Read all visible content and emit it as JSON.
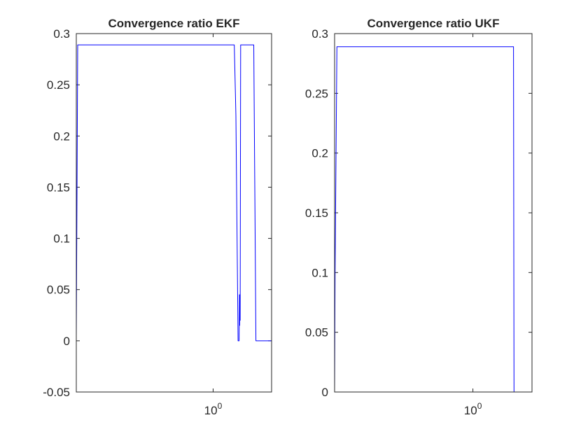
{
  "colors": {
    "line": "#0000ff",
    "axes": "#262626",
    "background": "#ffffff"
  },
  "chart_data": [
    {
      "type": "line",
      "title": "Convergence ratio EKF",
      "xlabel": "",
      "ylabel": "",
      "xscale": "log",
      "xlim": [
        0.158,
        2.2
      ],
      "ylim": [
        -0.05,
        0.3
      ],
      "grid": false,
      "box": true,
      "xticks": [
        {
          "value": 1,
          "base": "10",
          "exp": "0"
        }
      ],
      "yticks": [
        {
          "value": -0.05,
          "label": "-0.05"
        },
        {
          "value": 0,
          "label": "0"
        },
        {
          "value": 0.05,
          "label": "0.05"
        },
        {
          "value": 0.1,
          "label": "0.1"
        },
        {
          "value": 0.15,
          "label": "0.15"
        },
        {
          "value": 0.2,
          "label": "0.2"
        },
        {
          "value": 0.25,
          "label": "0.25"
        },
        {
          "value": 0.3,
          "label": "0.3"
        }
      ],
      "series": [
        {
          "x": [
            0.158,
            0.161,
            0.163,
            1.33,
            1.36,
            1.4,
            1.42,
            1.425,
            1.43,
            1.435,
            1.44,
            1.45,
            1.465,
            1.48,
            1.68,
            1.73,
            1.78,
            1.8,
            2.2
          ],
          "y": [
            0.004,
            0.289,
            0.289,
            0.289,
            0.22,
            0.0,
            0.0,
            0.045,
            0.015,
            0.045,
            0.02,
            0.289,
            0.289,
            0.289,
            0.289,
            0.289,
            0.0,
            0.0,
            0.0
          ]
        }
      ]
    },
    {
      "type": "line",
      "title": "Convergence ratio UKF",
      "xlabel": "",
      "ylabel": "",
      "xscale": "log",
      "xlim": [
        0.158,
        2.2
      ],
      "ylim": [
        0,
        0.3
      ],
      "grid": false,
      "box": true,
      "xticks": [
        {
          "value": 1,
          "base": "10",
          "exp": "0"
        }
      ],
      "yticks": [
        {
          "value": 0,
          "label": "0"
        },
        {
          "value": 0.05,
          "label": "0.05"
        },
        {
          "value": 0.1,
          "label": "0.1"
        },
        {
          "value": 0.15,
          "label": "0.15"
        },
        {
          "value": 0.2,
          "label": "0.2"
        },
        {
          "value": 0.25,
          "label": "0.25"
        },
        {
          "value": 0.3,
          "label": "0.3"
        }
      ],
      "series": [
        {
          "x": [
            0.158,
            0.159,
            0.163,
            1.7,
            1.72,
            1.73,
            2.2
          ],
          "y": [
            0.0,
            0.1,
            0.289,
            0.289,
            0.289,
            0.0,
            0.0
          ]
        }
      ]
    }
  ]
}
